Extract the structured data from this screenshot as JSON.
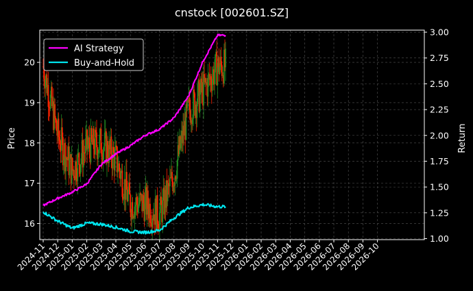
{
  "chart_data": {
    "type": "line",
    "title": "cnstock [002601.SZ]",
    "ylabel_left": "Price",
    "ylabel_right": "Return",
    "y_left_lim": [
      15.6,
      20.8
    ],
    "y_right_lim": [
      0.99,
      3.02
    ],
    "y_left_ticks": [
      "16",
      "17",
      "18",
      "19",
      "20"
    ],
    "y_right_ticks": [
      "1.00",
      "1.25",
      "1.50",
      "1.75",
      "2.00",
      "2.25",
      "2.50",
      "2.75",
      "3.00"
    ],
    "x_ticks": [
      "2024-11",
      "2024-12",
      "2025-01",
      "2025-02",
      "2025-03",
      "2025-04",
      "2025-05",
      "2025-06",
      "2025-07",
      "2025-08",
      "2025-09",
      "2025-10",
      "2025-11",
      "2025-12",
      "2026-01",
      "2026-02",
      "2026-03",
      "2026-04",
      "2026-05",
      "2026-06",
      "2026-07",
      "2026-08",
      "2026-09",
      "2026-10"
    ],
    "x_data_end": "2025-11",
    "grid": true,
    "legend": {
      "position": "top-left",
      "entries": [
        "AI Strategy",
        "Buy-and-Hold"
      ]
    },
    "colors": {
      "background": "#000000",
      "ai_strategy": "#ff00ff",
      "buy_and_hold": "#00e5ee",
      "candle_up": "#228b22",
      "candle_down": "#ff2200",
      "grid": "#555555",
      "text": "#ffffff"
    },
    "price_path": [
      [
        "2024-11",
        19.9
      ],
      [
        "2024-12",
        18.2
      ],
      [
        "2025-01",
        17.3
      ],
      [
        "2025-02",
        17.9
      ],
      [
        "2025-03",
        18.0
      ],
      [
        "2025-04",
        17.6
      ],
      [
        "2025-05",
        16.5
      ],
      [
        "2025-06",
        16.5
      ],
      [
        "2025-07",
        16.2
      ],
      [
        "2025-08",
        17.2
      ],
      [
        "2025-09",
        18.8
      ],
      [
        "2025-10",
        19.3
      ],
      [
        "2025-11",
        19.9
      ]
    ],
    "series": [
      {
        "name": "AI Strategy",
        "axis": "right",
        "points": [
          [
            "2024-11",
            1.32
          ],
          [
            "2024-12",
            1.39
          ],
          [
            "2025-01",
            1.45
          ],
          [
            "2025-02",
            1.53
          ],
          [
            "2025-03",
            1.72
          ],
          [
            "2025-04",
            1.82
          ],
          [
            "2025-05",
            1.9
          ],
          [
            "2025-06",
            2.0
          ],
          [
            "2025-07",
            2.06
          ],
          [
            "2025-08",
            2.17
          ],
          [
            "2025-09",
            2.38
          ],
          [
            "2025-10",
            2.72
          ],
          [
            "2025-11",
            2.97
          ]
        ]
      },
      {
        "name": "Buy-and-Hold",
        "axis": "right",
        "points": [
          [
            "2024-11",
            1.26
          ],
          [
            "2024-12",
            1.17
          ],
          [
            "2025-01",
            1.1
          ],
          [
            "2025-02",
            1.15
          ],
          [
            "2025-03",
            1.14
          ],
          [
            "2025-04",
            1.11
          ],
          [
            "2025-05",
            1.07
          ],
          [
            "2025-06",
            1.06
          ],
          [
            "2025-07",
            1.08
          ],
          [
            "2025-08",
            1.2
          ],
          [
            "2025-09",
            1.3
          ],
          [
            "2025-10",
            1.33
          ],
          [
            "2025-11",
            1.31
          ]
        ]
      }
    ]
  }
}
